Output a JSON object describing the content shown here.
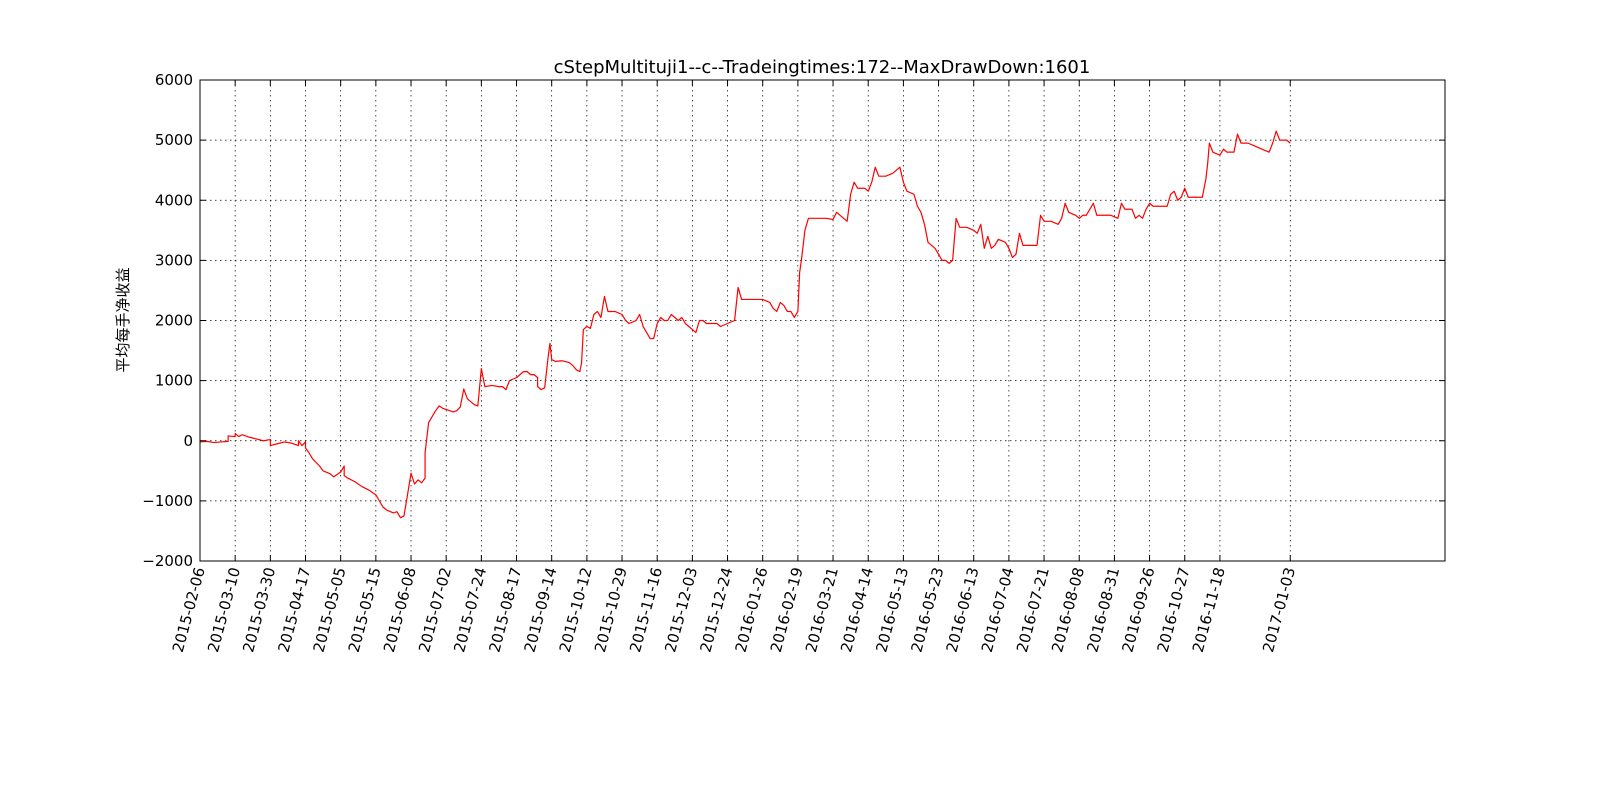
{
  "chart_data": {
    "type": "line",
    "title": "cStepMultituji1--c--Tradeingtimes:172--MaxDrawDown:1601",
    "xlabel": "",
    "ylabel": "平均每手净收益",
    "ylim": [
      -2000,
      6000
    ],
    "yticks": [
      -2000,
      -1000,
      0,
      1000,
      2000,
      3000,
      4000,
      5000,
      6000
    ],
    "ytick_labels": [
      "−2000",
      "−1000",
      "0",
      "1000",
      "2000",
      "3000",
      "4000",
      "5000",
      "6000"
    ],
    "xlim": [
      0,
      354
    ],
    "x_axis_kind": "trading-day index (categorical dates)",
    "xticks": [
      {
        "index": 0,
        "label": "2015-02-06"
      },
      {
        "index": 10,
        "label": "2015-03-10"
      },
      {
        "index": 20,
        "label": "2015-03-30"
      },
      {
        "index": 30,
        "label": "2015-04-17"
      },
      {
        "index": 40,
        "label": "2015-05-05"
      },
      {
        "index": 50,
        "label": "2015-05-15"
      },
      {
        "index": 60,
        "label": "2015-06-08"
      },
      {
        "index": 70,
        "label": "2015-07-02"
      },
      {
        "index": 80,
        "label": "2015-07-24"
      },
      {
        "index": 90,
        "label": "2015-08-17"
      },
      {
        "index": 100,
        "label": "2015-09-14"
      },
      {
        "index": 110,
        "label": "2015-10-12"
      },
      {
        "index": 120,
        "label": "2015-10-29"
      },
      {
        "index": 130,
        "label": "2015-11-16"
      },
      {
        "index": 140,
        "label": "2015-12-03"
      },
      {
        "index": 150,
        "label": "2015-12-24"
      },
      {
        "index": 160,
        "label": "2016-01-26"
      },
      {
        "index": 170,
        "label": "2016-02-19"
      },
      {
        "index": 180,
        "label": "2016-03-21"
      },
      {
        "index": 190,
        "label": "2016-04-14"
      },
      {
        "index": 200,
        "label": "2016-05-13"
      },
      {
        "index": 210,
        "label": "2016-05-23"
      },
      {
        "index": 220,
        "label": "2016-06-13"
      },
      {
        "index": 230,
        "label": "2016-07-04"
      },
      {
        "index": 240,
        "label": "2016-07-21"
      },
      {
        "index": 250,
        "label": "2016-08-08"
      },
      {
        "index": 260,
        "label": "2016-08-31"
      },
      {
        "index": 270,
        "label": "2016-09-26"
      },
      {
        "index": 280,
        "label": "2016-10-27"
      },
      {
        "index": 290,
        "label": "2016-11-18"
      },
      {
        "index": 310,
        "label": "2017-01-03"
      }
    ],
    "grid": true,
    "series": [
      {
        "color": "#ff0000",
        "points": [
          [
            0,
            -20
          ],
          [
            2,
            -10
          ],
          [
            4,
            -30
          ],
          [
            6,
            -20
          ],
          [
            8,
            -10
          ],
          [
            8,
            80
          ],
          [
            10,
            70
          ],
          [
            10,
            120
          ],
          [
            11,
            70
          ],
          [
            12,
            100
          ],
          [
            14,
            60
          ],
          [
            16,
            30
          ],
          [
            18,
            0
          ],
          [
            20,
            20
          ],
          [
            20,
            -80
          ],
          [
            22,
            -50
          ],
          [
            24,
            -20
          ],
          [
            26,
            -40
          ],
          [
            28,
            -80
          ],
          [
            28,
            0
          ],
          [
            29,
            -80
          ],
          [
            30,
            -20
          ],
          [
            30,
            -120
          ],
          [
            31,
            -200
          ],
          [
            32,
            -300
          ],
          [
            33,
            -360
          ],
          [
            34,
            -420
          ],
          [
            35,
            -500
          ],
          [
            37,
            -550
          ],
          [
            38,
            -600
          ],
          [
            40,
            -520
          ],
          [
            41,
            -420
          ],
          [
            41,
            -580
          ],
          [
            42,
            -620
          ],
          [
            44,
            -680
          ],
          [
            46,
            -760
          ],
          [
            48,
            -820
          ],
          [
            50,
            -900
          ],
          [
            51,
            -1000
          ],
          [
            52,
            -1100
          ],
          [
            53,
            -1150
          ],
          [
            55,
            -1200
          ],
          [
            56,
            -1180
          ],
          [
            57,
            -1280
          ],
          [
            58,
            -1250
          ],
          [
            59,
            -900
          ],
          [
            60,
            -540
          ],
          [
            61,
            -720
          ],
          [
            62,
            -650
          ],
          [
            63,
            -700
          ],
          [
            64,
            -620
          ],
          [
            64,
            -200
          ],
          [
            65,
            300
          ],
          [
            66,
            400
          ],
          [
            67,
            500
          ],
          [
            68,
            580
          ],
          [
            69,
            540
          ],
          [
            70,
            520
          ],
          [
            72,
            480
          ],
          [
            73,
            500
          ],
          [
            74,
            560
          ],
          [
            75,
            860
          ],
          [
            76,
            700
          ],
          [
            77,
            650
          ],
          [
            78,
            600
          ],
          [
            79,
            580
          ],
          [
            80,
            1200
          ],
          [
            81,
            900
          ],
          [
            83,
            920
          ],
          [
            85,
            900
          ],
          [
            86,
            900
          ],
          [
            87,
            850
          ],
          [
            88,
            1000
          ],
          [
            90,
            1050
          ],
          [
            91,
            1100
          ],
          [
            92,
            1150
          ],
          [
            93,
            1150
          ],
          [
            94,
            1100
          ],
          [
            95,
            1100
          ],
          [
            96,
            1050
          ],
          [
            96,
            900
          ],
          [
            97,
            850
          ],
          [
            98,
            880
          ],
          [
            99,
            1400
          ],
          [
            99.5,
            1620
          ],
          [
            100,
            1350
          ],
          [
            101,
            1320
          ],
          [
            103,
            1330
          ],
          [
            105,
            1300
          ],
          [
            106,
            1250
          ],
          [
            107,
            1180
          ],
          [
            108,
            1150
          ],
          [
            108.5,
            1300
          ],
          [
            109,
            1850
          ],
          [
            110,
            1900
          ],
          [
            111,
            1870
          ],
          [
            112,
            2100
          ],
          [
            113,
            2150
          ],
          [
            114,
            2050
          ],
          [
            115,
            2400
          ],
          [
            116,
            2150
          ],
          [
            118,
            2150
          ],
          [
            120,
            2100
          ],
          [
            121,
            2000
          ],
          [
            122,
            1950
          ],
          [
            124,
            2000
          ],
          [
            125,
            2100
          ],
          [
            126,
            1900
          ],
          [
            127,
            1800
          ],
          [
            128,
            1700
          ],
          [
            129,
            1700
          ],
          [
            130,
            1950
          ],
          [
            131,
            2050
          ],
          [
            132,
            2000
          ],
          [
            133,
            2000
          ],
          [
            134,
            2100
          ],
          [
            135,
            2050
          ],
          [
            136,
            2000
          ],
          [
            137,
            2050
          ],
          [
            138,
            1950
          ],
          [
            139,
            1900
          ],
          [
            140,
            1850
          ],
          [
            141,
            1800
          ],
          [
            142,
            2000
          ],
          [
            143,
            2000
          ],
          [
            144,
            1950
          ],
          [
            145,
            1950
          ],
          [
            146,
            1950
          ],
          [
            147,
            1950
          ],
          [
            148,
            1900
          ],
          [
            150,
            1950
          ],
          [
            152,
            2000
          ],
          [
            153,
            2550
          ],
          [
            154,
            2350
          ],
          [
            156,
            2350
          ],
          [
            158,
            2350
          ],
          [
            160,
            2350
          ],
          [
            162,
            2300
          ],
          [
            163,
            2200
          ],
          [
            164,
            2150
          ],
          [
            165,
            2300
          ],
          [
            166,
            2250
          ],
          [
            167,
            2150
          ],
          [
            168,
            2150
          ],
          [
            169,
            2050
          ],
          [
            170,
            2150
          ],
          [
            170.5,
            2800
          ],
          [
            171,
            3000
          ],
          [
            172,
            3500
          ],
          [
            173,
            3700
          ],
          [
            174,
            3700
          ],
          [
            176,
            3700
          ],
          [
            178,
            3700
          ],
          [
            180,
            3680
          ],
          [
            181,
            3800
          ],
          [
            183,
            3700
          ],
          [
            184,
            3650
          ],
          [
            185,
            4100
          ],
          [
            186,
            4300
          ],
          [
            187,
            4200
          ],
          [
            189,
            4200
          ],
          [
            190,
            4150
          ],
          [
            191,
            4300
          ],
          [
            192,
            4550
          ],
          [
            193,
            4400
          ],
          [
            195,
            4400
          ],
          [
            197,
            4450
          ],
          [
            199,
            4550
          ],
          [
            200,
            4300
          ],
          [
            201,
            4150
          ],
          [
            203,
            4100
          ],
          [
            204,
            3900
          ],
          [
            205,
            3800
          ],
          [
            206,
            3600
          ],
          [
            207,
            3300
          ],
          [
            208,
            3250
          ],
          [
            209,
            3200
          ],
          [
            210,
            3100
          ],
          [
            211,
            3000
          ],
          [
            212,
            3000
          ],
          [
            213,
            2950
          ],
          [
            214,
            3000
          ],
          [
            215,
            3700
          ],
          [
            216,
            3550
          ],
          [
            218,
            3550
          ],
          [
            220,
            3500
          ],
          [
            221,
            3450
          ],
          [
            222,
            3600
          ],
          [
            223,
            3200
          ],
          [
            224,
            3400
          ],
          [
            225,
            3200
          ],
          [
            226,
            3250
          ],
          [
            227,
            3350
          ],
          [
            229,
            3300
          ],
          [
            230,
            3200
          ],
          [
            231,
            3050
          ],
          [
            232,
            3100
          ],
          [
            233,
            3450
          ],
          [
            234,
            3250
          ],
          [
            236,
            3250
          ],
          [
            238,
            3250
          ],
          [
            239,
            3750
          ],
          [
            240,
            3650
          ],
          [
            242,
            3650
          ],
          [
            244,
            3600
          ],
          [
            245,
            3700
          ],
          [
            246,
            3950
          ],
          [
            247,
            3800
          ],
          [
            249,
            3750
          ],
          [
            250,
            3700
          ],
          [
            251,
            3750
          ],
          [
            252,
            3750
          ],
          [
            254,
            3950
          ],
          [
            255,
            3750
          ],
          [
            257,
            3750
          ],
          [
            259,
            3750
          ],
          [
            261,
            3700
          ],
          [
            262,
            3950
          ],
          [
            263,
            3850
          ],
          [
            265,
            3850
          ],
          [
            266,
            3700
          ],
          [
            267,
            3750
          ],
          [
            268,
            3700
          ],
          [
            269,
            3850
          ],
          [
            270,
            3950
          ],
          [
            271,
            3900
          ],
          [
            273,
            3900
          ],
          [
            275,
            3900
          ],
          [
            276,
            4100
          ],
          [
            277,
            4150
          ],
          [
            278,
            4000
          ],
          [
            279,
            4050
          ],
          [
            280,
            4200
          ],
          [
            281,
            4050
          ],
          [
            283,
            4050
          ],
          [
            285,
            4050
          ],
          [
            286,
            4350
          ],
          [
            286.5,
            4600
          ],
          [
            287,
            4950
          ],
          [
            288,
            4800
          ],
          [
            290,
            4750
          ],
          [
            291,
            4850
          ],
          [
            292,
            4800
          ],
          [
            294,
            4800
          ],
          [
            295,
            5100
          ],
          [
            296,
            4950
          ],
          [
            298,
            4950
          ],
          [
            300,
            4900
          ],
          [
            302,
            4850
          ],
          [
            304,
            4800
          ],
          [
            305,
            4950
          ],
          [
            306,
            5150
          ],
          [
            307,
            5000
          ],
          [
            309,
            5000
          ],
          [
            310,
            4950
          ]
        ]
      }
    ]
  }
}
